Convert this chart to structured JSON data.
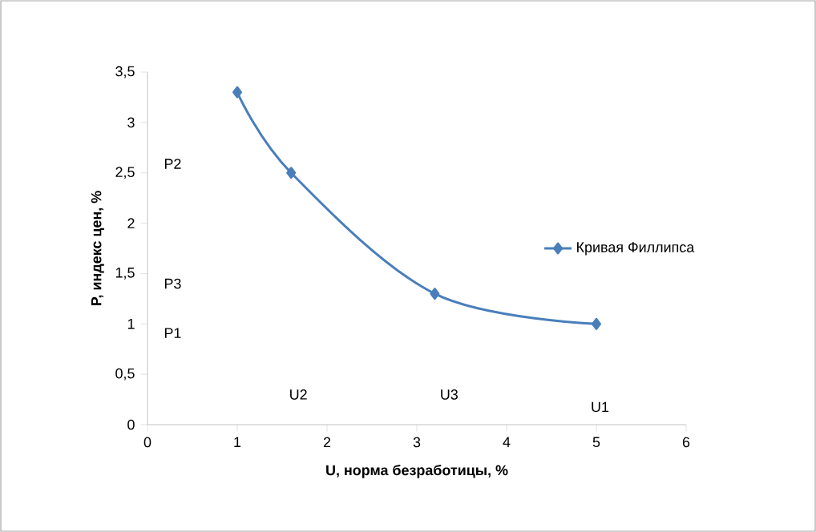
{
  "chart_data": {
    "type": "line",
    "xlabel": "U, норма безработицы, %",
    "ylabel": "P, индекс цен, %",
    "x": [
      1,
      1.6,
      3.2,
      5
    ],
    "series": [
      {
        "name": "Кривая Филлипса",
        "color": "#4a7ebb",
        "values": [
          3.3,
          2.5,
          1.3,
          1.0
        ]
      }
    ],
    "xlim": [
      0,
      6
    ],
    "xticks": [
      0,
      1,
      2,
      3,
      4,
      5,
      6
    ],
    "ylim": [
      0,
      3.5
    ],
    "yticks": [
      0,
      {
        "value": 0.5,
        "label": "0,5"
      },
      1,
      {
        "value": 1.5,
        "label": "1,5"
      },
      2,
      {
        "value": 2.5,
        "label": "2,5"
      },
      3,
      {
        "value": 3.5,
        "label": "3,5"
      }
    ],
    "annotations": [
      "P2",
      "P3",
      "P1",
      "U2",
      "U3",
      "U1"
    ],
    "marker": "diamond",
    "line_style": "solid",
    "grid": false,
    "legend": "right"
  }
}
